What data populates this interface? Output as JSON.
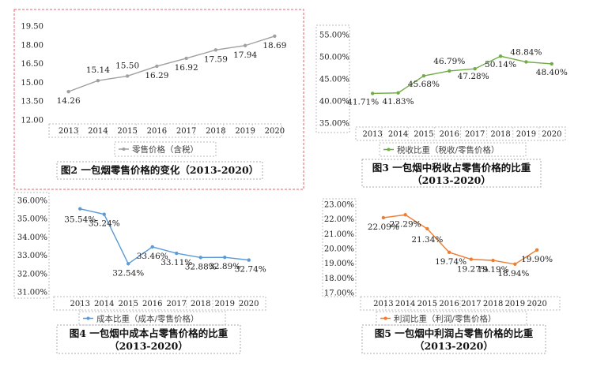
{
  "years": [
    "2013",
    "2014",
    "2015",
    "2016",
    "2017",
    "2018",
    "2019",
    "2020"
  ],
  "chart_data": [
    {
      "type": "line",
      "title": "图2 一包烟零售价格的变化（2013-2020）",
      "categories": [
        "2013",
        "2014",
        "2015",
        "2016",
        "2017",
        "2018",
        "2019",
        "2020"
      ],
      "series": [
        {
          "name": "零售价格（含税）",
          "values": [
            14.26,
            15.14,
            15.5,
            16.29,
            16.92,
            17.59,
            17.94,
            18.69
          ],
          "color": "#a0a0a0"
        }
      ],
      "data_labels": [
        "14.26",
        "15.14",
        "15.50",
        "16.29",
        "16.92",
        "17.59",
        "17.94",
        "18.69"
      ],
      "y_ticks": [
        "12.00",
        "13.50",
        "15.00",
        "16.50",
        "18.00",
        "19.50"
      ],
      "ylim": [
        12,
        19.5
      ],
      "legend_position": "bottom",
      "grid": false
    },
    {
      "type": "line",
      "title_lines": [
        "图3 一包烟中税收占零售价格的比重",
        "（2013-2020）"
      ],
      "categories": [
        "2013",
        "2014",
        "2015",
        "2016",
        "2017",
        "2018",
        "2019",
        "2020"
      ],
      "series": [
        {
          "name": "税收比重（税收/零售价格）",
          "values": [
            41.71,
            41.83,
            45.68,
            46.79,
            47.28,
            50.14,
            48.84,
            48.4
          ],
          "color": "#70ad47"
        }
      ],
      "data_labels": [
        "41.71%",
        "41.83%",
        "45.68%",
        "46.79%",
        "47.28%",
        "50.14%",
        "48.84%",
        "48.40%"
      ],
      "y_ticks": [
        "35.00%",
        "40.00%",
        "45.00%",
        "50.00%",
        "55.00%"
      ],
      "ylim": [
        35,
        55
      ],
      "legend_position": "bottom",
      "grid": false
    },
    {
      "type": "line",
      "title_lines": [
        "图4 一包烟中成本占零售价格的比重",
        "（2013-2020）"
      ],
      "categories": [
        "2013",
        "2014",
        "2015",
        "2016",
        "2017",
        "2018",
        "2019",
        "2020"
      ],
      "series": [
        {
          "name": "成本比重（成本/零售价格）",
          "values": [
            35.54,
            35.24,
            32.54,
            33.46,
            33.11,
            32.88,
            32.89,
            32.74
          ],
          "color": "#5b9bd5"
        }
      ],
      "data_labels": [
        "35.54%",
        "35.24%",
        "32.54%",
        "33.46%",
        "33.11%",
        "32.88%",
        "32.89%",
        "32.74%"
      ],
      "y_ticks": [
        "31.00%",
        "32.00%",
        "33.00%",
        "34.00%",
        "35.00%",
        "36.00%"
      ],
      "ylim": [
        31,
        36
      ],
      "legend_position": "bottom",
      "grid": false
    },
    {
      "type": "line",
      "title_lines": [
        "图5 一包烟中利润占零售价格的比重",
        "（2013-2020）"
      ],
      "categories": [
        "2013",
        "2014",
        "2015",
        "2016",
        "2017",
        "2018",
        "2019",
        "2020"
      ],
      "series": [
        {
          "name": "利润比重（利润/零售价格）",
          "values": [
            22.09,
            22.29,
            21.34,
            19.74,
            19.27,
            19.19,
            18.94,
            19.9
          ],
          "color": "#ed7d31"
        }
      ],
      "data_labels": [
        "22.09%",
        "22.29%",
        "21.34%",
        "19.74%",
        "19.27%",
        "19.19%",
        "18.94%",
        "19.90%"
      ],
      "y_ticks": [
        "17.00%",
        "18.00%",
        "19.00%",
        "20.00%",
        "21.00%",
        "22.00%",
        "23.00%"
      ],
      "ylim": [
        17,
        23
      ],
      "legend_position": "bottom",
      "grid": false
    }
  ]
}
